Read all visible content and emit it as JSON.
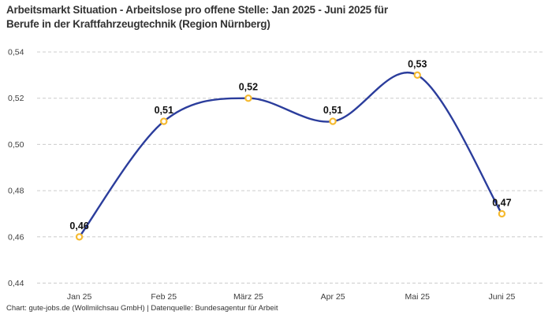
{
  "header": {
    "title_line1": "Arbeitsmarkt Situation - Arbeitslose pro offene Stelle: Jan 2025 - Juni 2025 für",
    "title_line2": "Berufe in der Kraftfahrzeugtechnik (Region Nürnberg)"
  },
  "footer": {
    "attribution": "Chart: gute-jobs.de (Wollmilchsau GmbH) | Datenquelle: Bundesagentur für Arbeit"
  },
  "chart_data": {
    "type": "line",
    "title": "Arbeitsmarkt Situation - Arbeitslose pro offene Stelle: Jan 2025 - Juni 2025 für Berufe in der Kraftfahrzeugtechnik (Region Nürnberg)",
    "categories": [
      "Jan 25",
      "Feb 25",
      "März 25",
      "Apr 25",
      "Mai 25",
      "Juni 25"
    ],
    "values": [
      0.46,
      0.51,
      0.52,
      0.51,
      0.53,
      0.47
    ],
    "value_labels": [
      "0,46",
      "0,51",
      "0,52",
      "0,51",
      "0,53",
      "0,47"
    ],
    "xlabel": "",
    "ylabel": "",
    "ylim": [
      0.44,
      0.54
    ],
    "y_ticks": [
      0.54,
      0.52,
      0.5,
      0.48,
      0.46,
      0.44
    ],
    "y_tick_labels": [
      "0,54",
      "0,52",
      "0,50",
      "0,48",
      "0,46",
      "0,44"
    ],
    "grid": "horizontal-dashed",
    "legend": "none",
    "line_style": "smooth-spline",
    "marker_style": "open-circle",
    "colors": {
      "line": "#2b3d9c",
      "marker_ring": "#f5ba30",
      "marker_fill": "#ffffff",
      "grid": "#cccccc",
      "title_text": "#333333",
      "axis_text": "#3d3d3d",
      "data_label_text": "#111111",
      "footer_text": "#333333",
      "background": "#ffffff"
    }
  }
}
